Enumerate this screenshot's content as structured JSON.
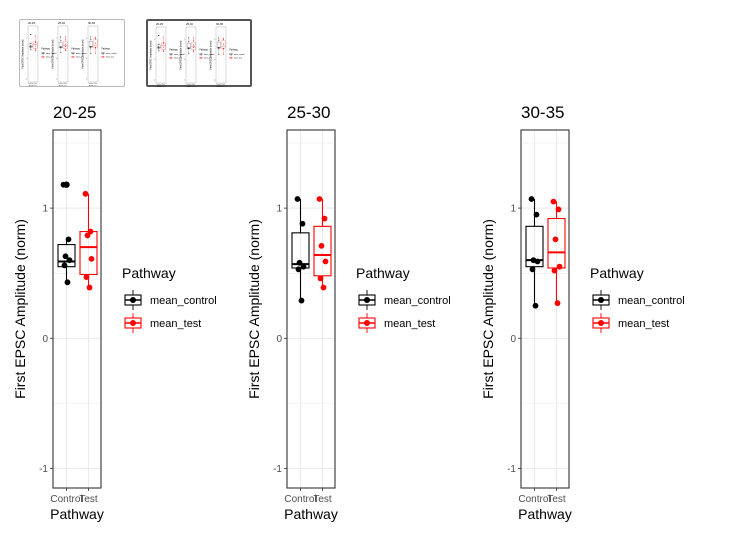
{
  "thumbnails": [
    {
      "id": "thumbnail-1",
      "selected": false
    },
    {
      "id": "thumbnail-2",
      "selected": true
    }
  ],
  "colors": {
    "control": "#000000",
    "test": "#ff0000",
    "grid": "#ebebeb",
    "panel_border": "#333333"
  },
  "chart_data": {
    "type": "boxplot",
    "ylabel": "First EPSC Amplitude (norm)",
    "xlabel": "Pathway",
    "ylim": [
      -1.15,
      1.6
    ],
    "yticks": [
      -1,
      0,
      1
    ],
    "categories": [
      "Control",
      "Test"
    ],
    "legend": {
      "title": "Pathway",
      "placement": "right",
      "entries": [
        {
          "label": "mean_control",
          "color": "#000000"
        },
        {
          "label": "mean_test",
          "color": "#ff0000"
        }
      ]
    },
    "panels": [
      {
        "title": "20-25",
        "series": [
          {
            "name": "mean_control",
            "category": "Control",
            "color": "#000000",
            "box": {
              "q1": 0.55,
              "median": 0.59,
              "q3": 0.72
            },
            "whisker": [
              0.43,
              0.76
            ],
            "points": [
              1.18,
              0.76,
              0.63,
              0.6,
              0.56,
              0.43
            ],
            "outliers": [
              1.18
            ]
          },
          {
            "name": "mean_test",
            "category": "Test",
            "color": "#ff0000",
            "box": {
              "q1": 0.49,
              "median": 0.7,
              "q3": 0.82
            },
            "whisker": [
              0.39,
              1.11
            ],
            "points": [
              1.11,
              0.82,
              0.79,
              0.61,
              0.47,
              0.39
            ],
            "outliers": []
          }
        ]
      },
      {
        "title": "25-30",
        "series": [
          {
            "name": "mean_control",
            "category": "Control",
            "color": "#000000",
            "box": {
              "q1": 0.54,
              "median": 0.57,
              "q3": 0.81
            },
            "whisker": [
              0.29,
              1.07
            ],
            "points": [
              1.07,
              0.88,
              0.58,
              0.55,
              0.53,
              0.29
            ],
            "outliers": []
          },
          {
            "name": "mean_test",
            "category": "Test",
            "color": "#ff0000",
            "box": {
              "q1": 0.48,
              "median": 0.64,
              "q3": 0.86
            },
            "whisker": [
              0.39,
              1.07
            ],
            "points": [
              1.07,
              0.92,
              0.71,
              0.59,
              0.46,
              0.39
            ],
            "outliers": []
          }
        ]
      },
      {
        "title": "30-35",
        "series": [
          {
            "name": "mean_control",
            "category": "Control",
            "color": "#000000",
            "box": {
              "q1": 0.55,
              "median": 0.6,
              "q3": 0.86
            },
            "whisker": [
              0.25,
              1.07
            ],
            "points": [
              1.07,
              0.95,
              0.6,
              0.59,
              0.53,
              0.25
            ],
            "outliers": []
          },
          {
            "name": "mean_test",
            "category": "Test",
            "color": "#ff0000",
            "box": {
              "q1": 0.54,
              "median": 0.66,
              "q3": 0.92
            },
            "whisker": [
              0.27,
              1.05
            ],
            "points": [
              1.05,
              0.99,
              0.76,
              0.55,
              0.52,
              0.27
            ],
            "outliers": []
          }
        ]
      }
    ]
  }
}
